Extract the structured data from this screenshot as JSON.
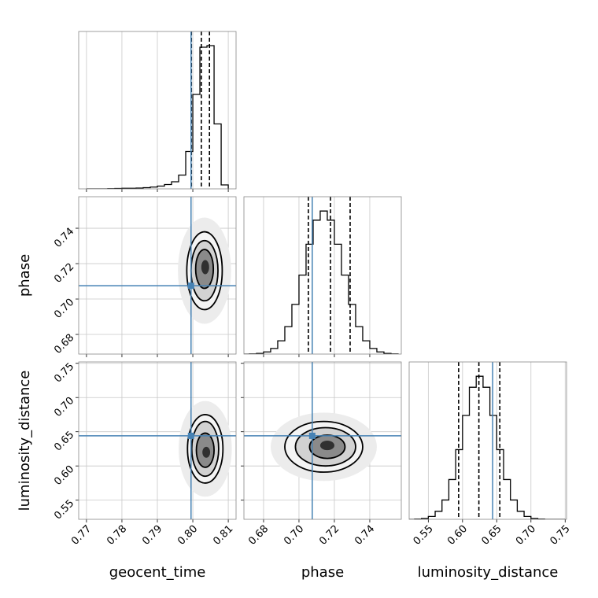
{
  "chart_data": {
    "type": "corner",
    "parameters": [
      "geocent_time",
      "phase",
      "luminosity_distance"
    ],
    "grid": true,
    "truth_color": "#4682b4",
    "hist_color": "#000000",
    "axes": [
      {
        "lim": [
          0.7678,
          0.8122
        ],
        "ticks": [
          0.77,
          0.78,
          0.79,
          {
            "value": 0.8,
            "label": "0.80"
          },
          0.81
        ]
      },
      {
        "lim": [
          0.6689,
          0.7578
        ],
        "ticks": [
          0.68,
          {
            "value": 0.7,
            "label": "0.70"
          },
          0.72,
          0.74
        ]
      },
      {
        "lim": [
          0.522,
          0.752
        ],
        "ticks": [
          0.55,
          {
            "value": 0.6,
            "label": "0.60"
          },
          0.65,
          {
            "value": 0.7,
            "label": "0.70"
          },
          0.75
        ]
      }
    ],
    "truths": [
      0.7995,
      0.7075,
      0.644
    ],
    "histograms": [
      {
        "ylim": [
          0,
          800
        ],
        "bins": [
          0.77,
          0.772,
          0.774,
          0.776,
          0.778,
          0.78,
          0.782,
          0.784,
          0.786,
          0.788,
          0.79,
          0.792,
          0.794,
          0.796,
          0.798,
          0.8,
          0.802,
          0.804,
          0.806,
          0.808,
          0.81
        ],
        "counts": [
          0,
          0,
          0,
          1,
          2,
          3,
          3,
          4,
          6,
          9,
          14,
          22,
          36,
          70,
          190,
          480,
          720,
          728,
          330,
          20
        ],
        "quantiles": [
          0.7996,
          0.8024,
          0.8047
        ]
      },
      {
        "ylim": [
          0,
          1100
        ],
        "bins": [
          0.668,
          0.672,
          0.676,
          0.68,
          0.684,
          0.688,
          0.692,
          0.696,
          0.7,
          0.704,
          0.708,
          0.712,
          0.716,
          0.72,
          0.724,
          0.728,
          0.732,
          0.736,
          0.74,
          0.744,
          0.748,
          0.752,
          0.756
        ],
        "counts": [
          0,
          1,
          5,
          15,
          39,
          93,
          192,
          347,
          552,
          768,
          936,
          1000,
          936,
          768,
          552,
          347,
          192,
          93,
          39,
          15,
          5,
          1
        ],
        "quantiles": [
          0.7053,
          0.7178,
          0.7289
        ]
      },
      {
        "ylim": [
          0,
          1100
        ],
        "bins": [
          0.52,
          0.53,
          0.54,
          0.55,
          0.56,
          0.57,
          0.58,
          0.59,
          0.6,
          0.61,
          0.62,
          0.63,
          0.64,
          0.65,
          0.66,
          0.67,
          0.68,
          0.69,
          0.7,
          0.71,
          0.72,
          0.73,
          0.74,
          0.75
        ],
        "counts": [
          0,
          2,
          6,
          20,
          56,
          135,
          278,
          487,
          726,
          923,
          1000,
          923,
          726,
          487,
          278,
          135,
          56,
          20,
          6,
          2,
          0,
          0,
          0
        ],
        "quantiles": [
          0.5943,
          0.6239,
          0.6545
        ]
      }
    ],
    "contours": [
      {
        "x": 0,
        "y": 1,
        "levels": [
          {
            "cx": 0.8033,
            "cy": 0.716,
            "rx": 0.0075,
            "ry": 0.03,
            "color": "#ececec",
            "stroke": false
          },
          {
            "cx": 0.8033,
            "cy": 0.716,
            "rx": 0.005,
            "ry": 0.022,
            "color": "#f4f4f4",
            "stroke": true
          },
          {
            "cx": 0.8033,
            "cy": 0.716,
            "rx": 0.0038,
            "ry": 0.017,
            "color": "#d2d2d2",
            "stroke": true
          },
          {
            "cx": 0.8033,
            "cy": 0.717,
            "rx": 0.0025,
            "ry": 0.011,
            "color": "#8a8a8a",
            "stroke": true
          },
          {
            "cx": 0.8035,
            "cy": 0.718,
            "rx": 0.0011,
            "ry": 0.004,
            "color": "#303030",
            "stroke": false
          }
        ]
      },
      {
        "x": 0,
        "y": 2,
        "levels": [
          {
            "cx": 0.8035,
            "cy": 0.625,
            "rx": 0.0075,
            "ry": 0.07,
            "color": "#ececec",
            "stroke": false
          },
          {
            "cx": 0.8035,
            "cy": 0.625,
            "rx": 0.005,
            "ry": 0.05,
            "color": "#f4f4f4",
            "stroke": true
          },
          {
            "cx": 0.8035,
            "cy": 0.625,
            "rx": 0.0038,
            "ry": 0.04,
            "color": "#d2d2d2",
            "stroke": true
          },
          {
            "cx": 0.8035,
            "cy": 0.623,
            "rx": 0.0025,
            "ry": 0.025,
            "color": "#8a8a8a",
            "stroke": true
          },
          {
            "cx": 0.8038,
            "cy": 0.62,
            "rx": 0.0011,
            "ry": 0.008,
            "color": "#303030",
            "stroke": false
          }
        ]
      },
      {
        "x": 1,
        "y": 2,
        "levels": [
          {
            "cx": 0.714,
            "cy": 0.628,
            "rx": 0.03,
            "ry": 0.05,
            "color": "#ececec",
            "stroke": false
          },
          {
            "cx": 0.714,
            "cy": 0.628,
            "rx": 0.022,
            "ry": 0.037,
            "color": "#f4f4f4",
            "stroke": true
          },
          {
            "cx": 0.715,
            "cy": 0.628,
            "rx": 0.017,
            "ry": 0.028,
            "color": "#d2d2d2",
            "stroke": true
          },
          {
            "cx": 0.716,
            "cy": 0.628,
            "rx": 0.01,
            "ry": 0.017,
            "color": "#8a8a8a",
            "stroke": true
          },
          {
            "cx": 0.716,
            "cy": 0.63,
            "rx": 0.004,
            "ry": 0.007,
            "color": "#303030",
            "stroke": false
          }
        ]
      }
    ]
  }
}
